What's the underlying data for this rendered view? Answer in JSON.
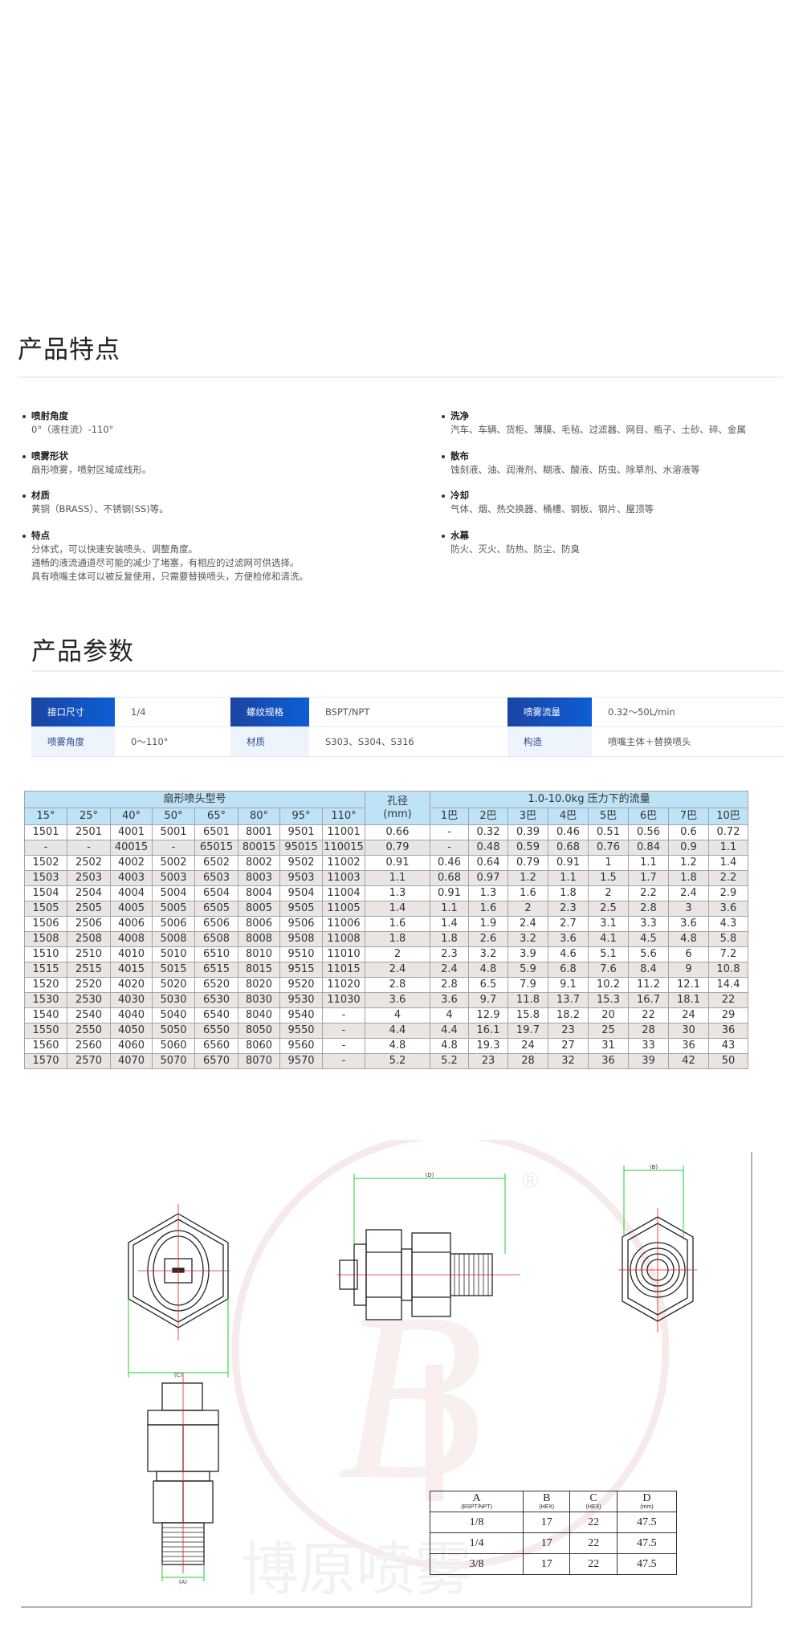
{
  "features": {
    "title": "产品特点",
    "left": [
      {
        "title": "喷射角度",
        "desc": [
          "0°（液柱流）-110°"
        ]
      },
      {
        "title": "喷雾形状",
        "desc": [
          "扇形喷雾，喷射区域成线形。"
        ]
      },
      {
        "title": "材质",
        "desc": [
          "黄铜（BRASS）、不锈钢(SS)等。"
        ]
      },
      {
        "title": "特点",
        "desc": [
          "分体式，可以快速安装喷头、调整角度。",
          "通畅的液流通道尽可能的减少了堵塞，有相应的过滤网可供选择。",
          "具有喷嘴主体可以被反复使用，只需要替换喷头，方便检修和清洗。"
        ]
      }
    ],
    "right": [
      {
        "title": "洗净",
        "desc": [
          "汽车、车辆、货柜、薄膜、毛毡、过滤器、网目、瓶子、土砂、碎、金属"
        ]
      },
      {
        "title": "散布",
        "desc": [
          "蚀刻液、油、润滑剂、糊液、酸液、防虫、除草剂、水溶液等"
        ]
      },
      {
        "title": "冷却",
        "desc": [
          "气体、烟、热交换器、桶槽、钢板、钢片、屋顶等"
        ]
      },
      {
        "title": "水幕",
        "desc": [
          "防火、灭火、防热、防尘、防臭"
        ]
      }
    ]
  },
  "params": {
    "title": "产品参数",
    "rows": [
      [
        {
          "label": "接口尺寸",
          "value": "1/4"
        },
        {
          "label": "螺纹规格",
          "value": "BSPT/NPT"
        },
        {
          "label": "喷雾流量",
          "value": "0.32～50L/min"
        }
      ],
      [
        {
          "label": "喷雾角度",
          "value": "0～110°"
        },
        {
          "label": "材质",
          "value": "S303、S304、S316"
        },
        {
          "label": "构造",
          "value": "喷嘴主体＋替换喷头"
        }
      ]
    ]
  },
  "spec_table": {
    "model_header": "扇形喷头型号",
    "orifice_header": "孔径\n(mm)",
    "flow_header": "1.0-10.0kg 压力下的流量",
    "angles": [
      "15°",
      "25°",
      "40°",
      "50°",
      "65°",
      "80°",
      "95°",
      "110°"
    ],
    "pressures": [
      "1巴",
      "2巴",
      "3巴",
      "4巴",
      "5巴",
      "6巴",
      "7巴",
      "10巴"
    ],
    "rows": [
      {
        "models": [
          "1501",
          "2501",
          "4001",
          "5001",
          "6501",
          "8001",
          "9501",
          "11001"
        ],
        "orifice": "0.66",
        "flows": [
          "-",
          "0.32",
          "0.39",
          "0.46",
          "0.51",
          "0.56",
          "0.6",
          "0.72"
        ]
      },
      {
        "models": [
          "-",
          "-",
          "40015",
          "-",
          "65015",
          "80015",
          "95015",
          "110015"
        ],
        "orifice": "0.79",
        "flows": [
          "-",
          "0.48",
          "0.59",
          "0.68",
          "0.76",
          "0.84",
          "0.9",
          "1.1"
        ]
      },
      {
        "models": [
          "1502",
          "2502",
          "4002",
          "5002",
          "6502",
          "8002",
          "9502",
          "11002"
        ],
        "orifice": "0.91",
        "flows": [
          "0.46",
          "0.64",
          "0.79",
          "0.91",
          "1",
          "1.1",
          "1.2",
          "1.4"
        ]
      },
      {
        "models": [
          "1503",
          "2503",
          "4003",
          "5003",
          "6503",
          "8003",
          "9503",
          "11003"
        ],
        "orifice": "1.1",
        "flows": [
          "0.68",
          "0.97",
          "1.2",
          "1.1",
          "1.5",
          "1.7",
          "1.8",
          "2.2"
        ]
      },
      {
        "models": [
          "1504",
          "2504",
          "4004",
          "5004",
          "6504",
          "8004",
          "9504",
          "11004"
        ],
        "orifice": "1.3",
        "flows": [
          "0.91",
          "1.3",
          "1.6",
          "1.8",
          "2",
          "2.2",
          "2.4",
          "2.9"
        ]
      },
      {
        "models": [
          "1505",
          "2505",
          "4005",
          "5005",
          "6505",
          "8005",
          "9505",
          "11005"
        ],
        "orifice": "1.4",
        "flows": [
          "1.1",
          "1.6",
          "2",
          "2.3",
          "2.5",
          "2.8",
          "3",
          "3.6"
        ]
      },
      {
        "models": [
          "1506",
          "2506",
          "4006",
          "5006",
          "6506",
          "8006",
          "9506",
          "11006"
        ],
        "orifice": "1.6",
        "flows": [
          "1.4",
          "1.9",
          "2.4",
          "2.7",
          "3.1",
          "3.3",
          "3.6",
          "4.3"
        ]
      },
      {
        "models": [
          "1508",
          "2508",
          "4008",
          "5008",
          "6508",
          "8008",
          "9508",
          "11008"
        ],
        "orifice": "1.8",
        "flows": [
          "1.8",
          "2.6",
          "3.2",
          "3.6",
          "4.1",
          "4.5",
          "4.8",
          "5.8"
        ]
      },
      {
        "models": [
          "1510",
          "2510",
          "4010",
          "5010",
          "6510",
          "8010",
          "9510",
          "11010"
        ],
        "orifice": "2",
        "flows": [
          "2.3",
          "3.2",
          "3.9",
          "4.6",
          "5.1",
          "5.6",
          "6",
          "7.2"
        ]
      },
      {
        "models": [
          "1515",
          "2515",
          "4015",
          "5015",
          "6515",
          "8015",
          "9515",
          "11015"
        ],
        "orifice": "2.4",
        "flows": [
          "2.4",
          "4.8",
          "5.9",
          "6.8",
          "7.6",
          "8.4",
          "9",
          "10.8"
        ]
      },
      {
        "models": [
          "1520",
          "2520",
          "4020",
          "5020",
          "6520",
          "8020",
          "9520",
          "11020"
        ],
        "orifice": "2.8",
        "flows": [
          "2.8",
          "6.5",
          "7.9",
          "9.1",
          "10.2",
          "11.2",
          "12.1",
          "14.4"
        ]
      },
      {
        "models": [
          "1530",
          "2530",
          "4030",
          "5030",
          "6530",
          "8030",
          "9530",
          "11030"
        ],
        "orifice": "3.6",
        "flows": [
          "3.6",
          "9.7",
          "11.8",
          "13.7",
          "15.3",
          "16.7",
          "18.1",
          "22"
        ]
      },
      {
        "models": [
          "1540",
          "2540",
          "4040",
          "5040",
          "6540",
          "8040",
          "9540",
          "-"
        ],
        "orifice": "4",
        "flows": [
          "4",
          "12.9",
          "15.8",
          "18.2",
          "20",
          "22",
          "24",
          "29"
        ]
      },
      {
        "models": [
          "1550",
          "2550",
          "4050",
          "5050",
          "6550",
          "8050",
          "9550",
          "-"
        ],
        "orifice": "4.4",
        "flows": [
          "4.4",
          "16.1",
          "19.7",
          "23",
          "25",
          "28",
          "30",
          "36"
        ]
      },
      {
        "models": [
          "1560",
          "2560",
          "4060",
          "5060",
          "6560",
          "8060",
          "9560",
          "-"
        ],
        "orifice": "4.8",
        "flows": [
          "4.8",
          "19.3",
          "24",
          "27",
          "31",
          "33",
          "36",
          "43"
        ]
      },
      {
        "models": [
          "1570",
          "2570",
          "4070",
          "5070",
          "6570",
          "8070",
          "9570",
          "-"
        ],
        "orifice": "5.2",
        "flows": [
          "5.2",
          "23",
          "28",
          "32",
          "36",
          "39",
          "42",
          "50"
        ]
      }
    ]
  },
  "drawing": {
    "dim_labels": {
      "c": "(C)",
      "d": "(D)",
      "b": "(B)",
      "a": "(A)"
    },
    "watermark": {
      "logo_letter": "B",
      "text": "博原喷雾",
      "registered": "®"
    },
    "dim_table": {
      "headers": [
        {
          "main": "A",
          "sub": "(BSPT/NPT)"
        },
        {
          "main": "B",
          "sub": "(HEX)"
        },
        {
          "main": "C",
          "sub": "(HEX)"
        },
        {
          "main": "D",
          "sub": "(mm)"
        }
      ],
      "rows": [
        [
          "1/8",
          "17",
          "22",
          "47.5"
        ],
        [
          "1/4",
          "17",
          "22",
          "47.5"
        ],
        [
          "3/8",
          "17",
          "22",
          "47.5"
        ]
      ]
    }
  },
  "colors": {
    "param_label": "#1b44a2",
    "table_header": "#bfe3f6",
    "table_alt_row": "#e8e5e3",
    "dimension_line": "#22cc33",
    "center_line": "#e02020"
  }
}
